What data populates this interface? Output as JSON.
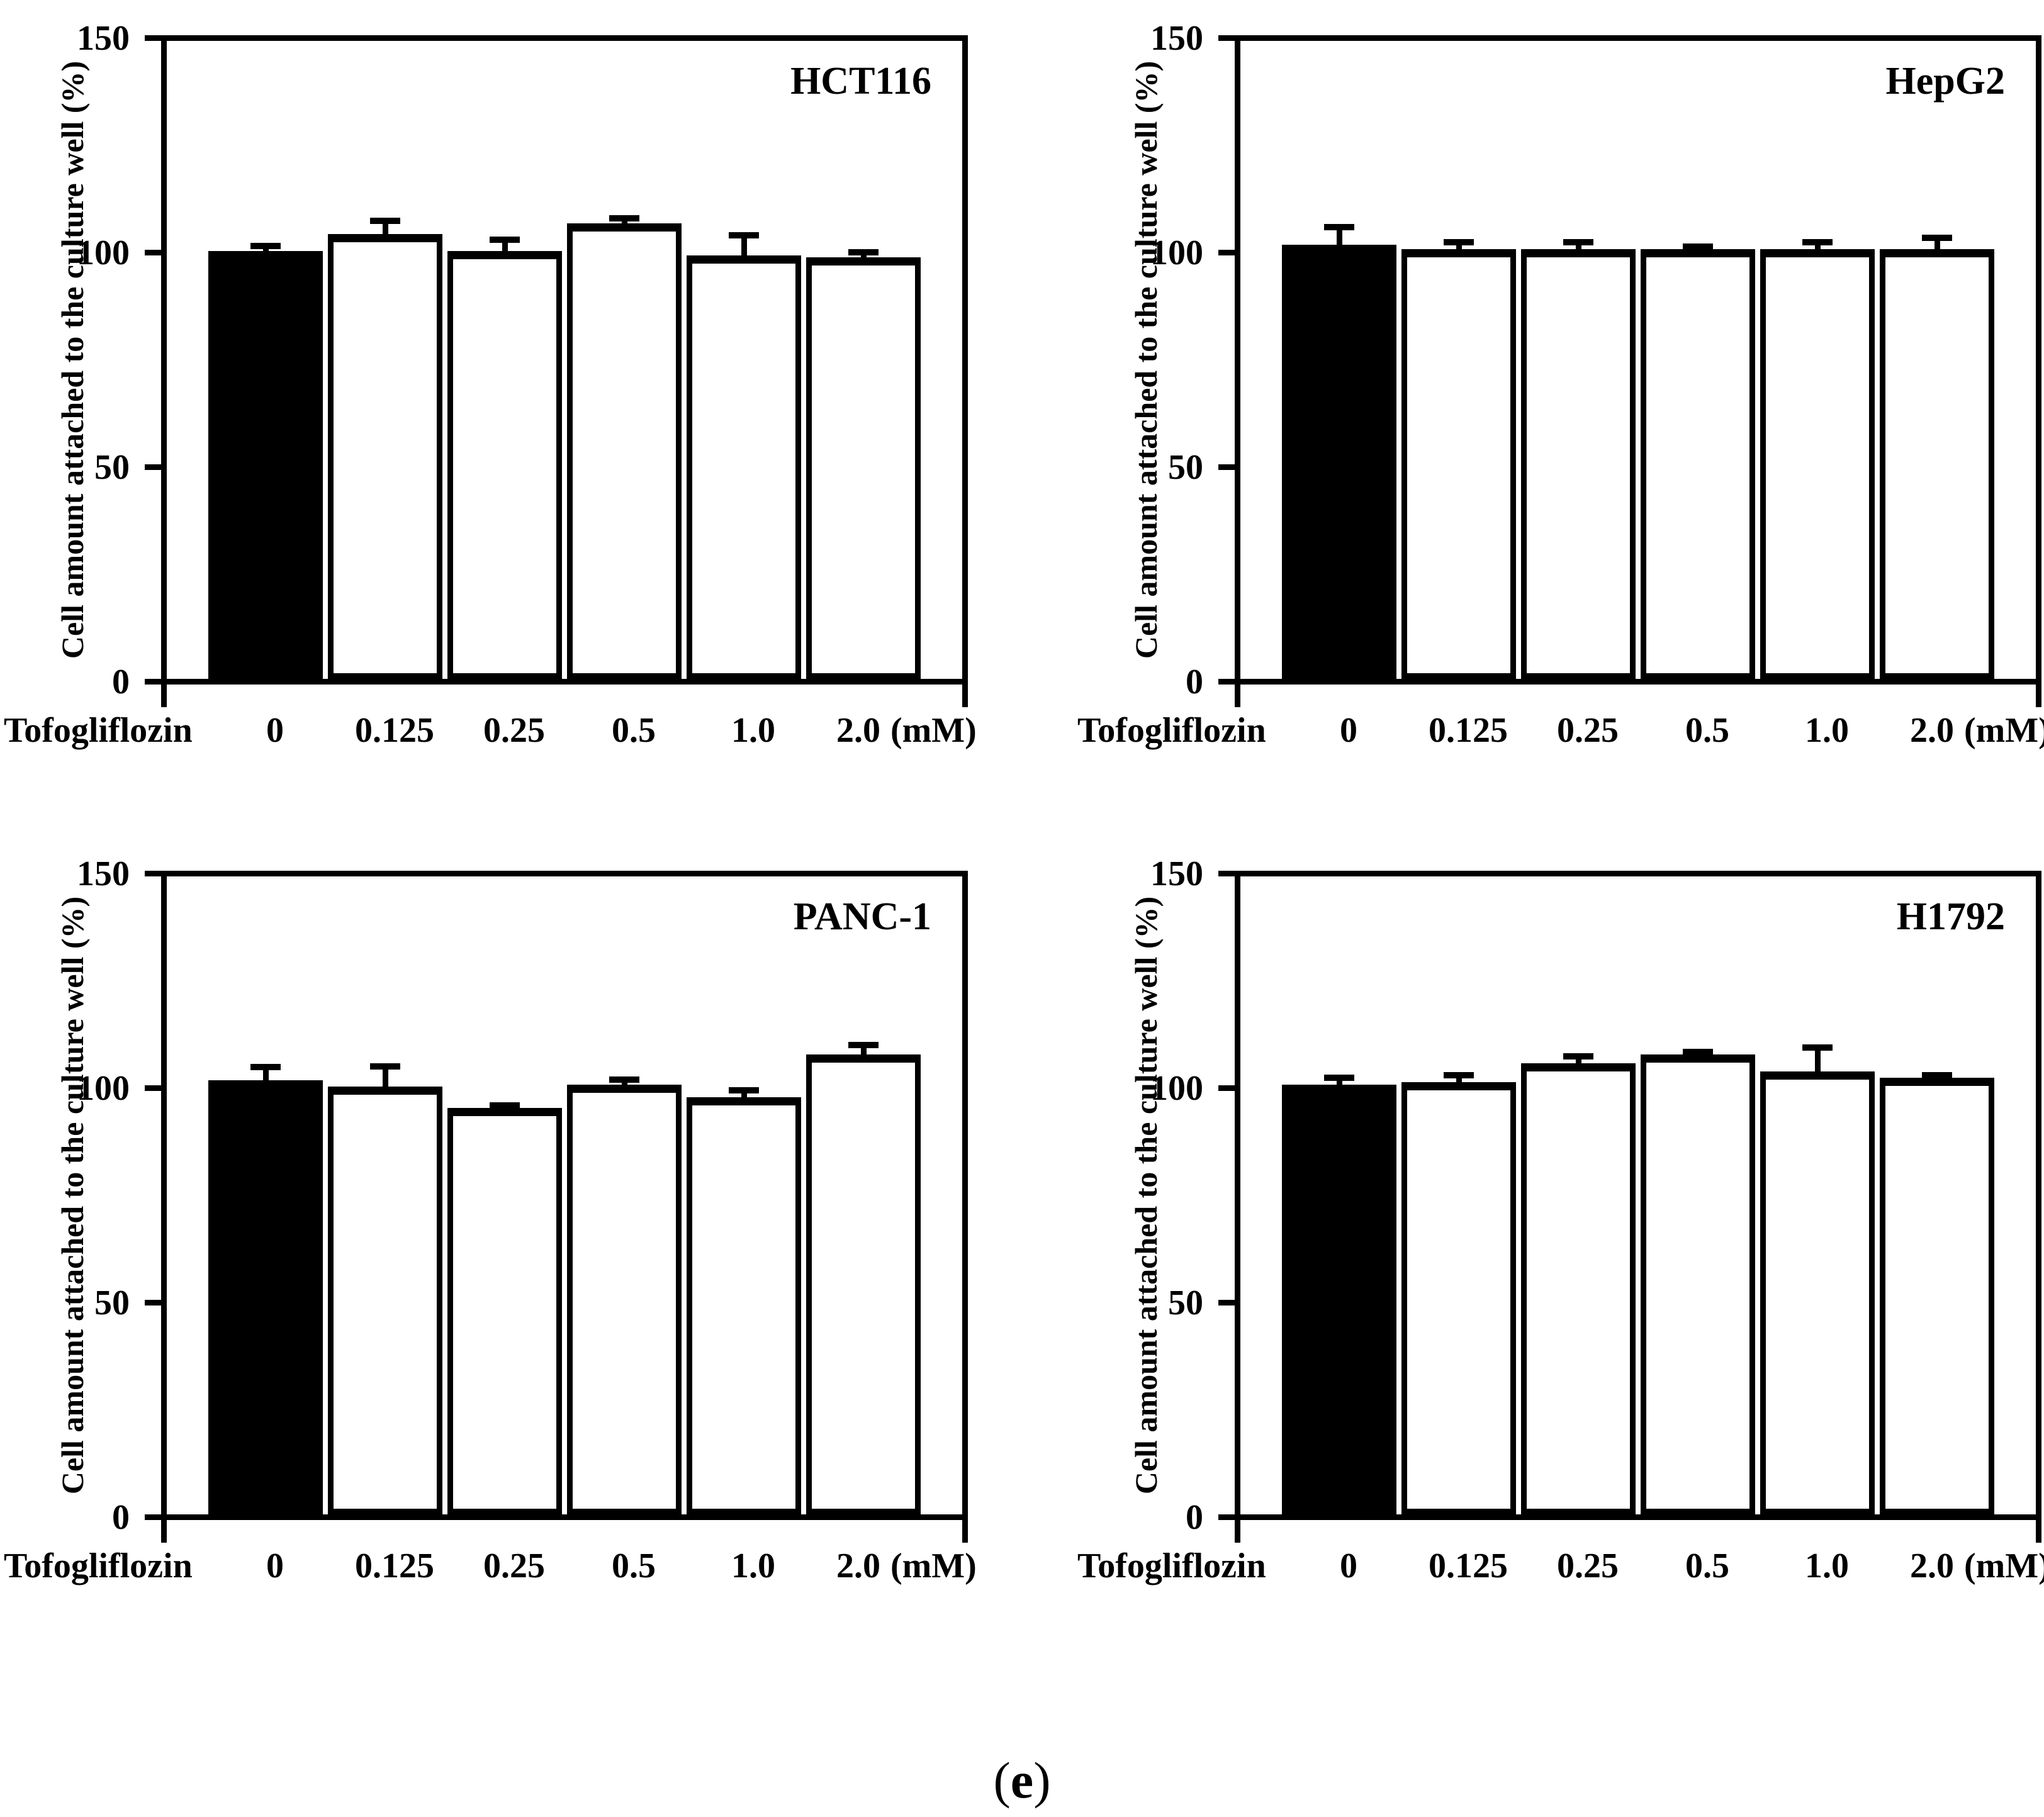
{
  "figure": {
    "caption": {
      "open": "(",
      "letter": "e",
      "close": ")"
    },
    "y_axis": {
      "label": "Cell amount attached to the culture well (%)",
      "ticks": [
        0,
        50,
        100,
        150
      ],
      "range": [
        0,
        150
      ]
    },
    "x_axis": {
      "label": "Tofogliflozin",
      "unit": "(mM)",
      "categories": [
        "0",
        "0.125",
        "0.25",
        "0.5",
        "1.0",
        "2.0"
      ]
    },
    "bar_colors": {
      "control_bar": "#000000",
      "treated_bar": "#ffffff",
      "outline": "#000000"
    }
  },
  "chart_data": [
    {
      "type": "bar",
      "title": "HCT116",
      "xlabel": "Tofogliflozin (mM)",
      "ylabel": "Cell amount attached to the culture well (%)",
      "categories": [
        "0",
        "0.125",
        "0.25",
        "0.5",
        "1.0",
        "2.0"
      ],
      "values": [
        100,
        104,
        100,
        106.5,
        99,
        98.5
      ],
      "errors_upper": [
        1,
        3,
        2.5,
        1,
        4.5,
        1
      ],
      "ylim": [
        0,
        150
      ],
      "legend": "none",
      "grid": false
    },
    {
      "type": "bar",
      "title": "HepG2",
      "xlabel": "Tofogliflozin (mM)",
      "ylabel": "Cell amount attached to the culture well (%)",
      "categories": [
        "0",
        "0.125",
        "0.25",
        "0.5",
        "1.0",
        "2.0"
      ],
      "values": [
        101.5,
        100.5,
        100.5,
        100.5,
        100.5,
        100.5
      ],
      "errors_upper": [
        4,
        1.5,
        1.5,
        0.5,
        1.5,
        2.5
      ],
      "ylim": [
        0,
        150
      ],
      "legend": "none",
      "grid": false
    },
    {
      "type": "bar",
      "title": "PANC-1",
      "xlabel": "Tofogliflozin (mM)",
      "ylabel": "Cell amount attached to the culture well (%)",
      "categories": [
        "0",
        "0.125",
        "0.25",
        "0.5",
        "1.0",
        "2.0"
      ],
      "values": [
        101.5,
        100,
        95,
        100.5,
        97.5,
        107.5
      ],
      "errors_upper": [
        3,
        4.5,
        0.5,
        1,
        1.5,
        2
      ],
      "ylim": [
        0,
        150
      ],
      "legend": "none",
      "grid": false
    },
    {
      "type": "bar",
      "title": "H1792",
      "xlabel": "Tofogliflozin (mM)",
      "ylabel": "Cell amount attached to the culture well (%)",
      "categories": [
        "0",
        "0.125",
        "0.25",
        "0.5",
        "1.0",
        "2.0"
      ],
      "values": [
        100.5,
        101,
        105.5,
        107.5,
        103.5,
        102
      ],
      "errors_upper": [
        1.5,
        1.5,
        1.5,
        0.5,
        5.5,
        0.5
      ],
      "ylim": [
        0,
        150
      ],
      "legend": "none",
      "grid": false
    }
  ]
}
